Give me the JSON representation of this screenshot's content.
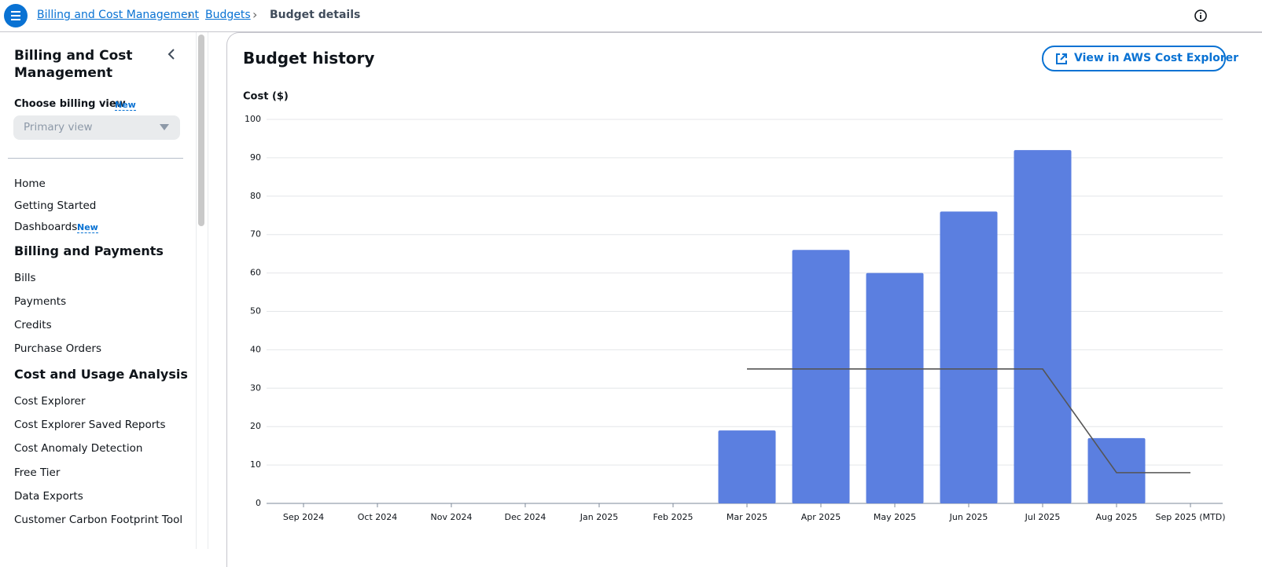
{
  "breadcrumbs": [
    "Billing and Cost Management",
    "Budgets",
    "Budget details"
  ],
  "sidebar": {
    "title": "Billing and Cost Management",
    "billing_view_label": "Choose billing view",
    "new_badge": "New",
    "billing_view_value": "Primary view",
    "top_links": [
      {
        "label": "Home"
      },
      {
        "label": "Getting Started"
      },
      {
        "label": "Dashboards",
        "badge": "New"
      }
    ],
    "sections": [
      {
        "title": "Billing and Payments",
        "items": [
          "Bills",
          "Payments",
          "Credits",
          "Purchase Orders"
        ]
      },
      {
        "title": "Cost and Usage Analysis",
        "items": [
          "Cost Explorer",
          "Cost Explorer Saved Reports",
          "Cost Anomaly Detection",
          "Free Tier",
          "Data Exports",
          "Customer Carbon Footprint Tool"
        ]
      }
    ]
  },
  "main": {
    "title": "Budget history",
    "button": "View in AWS Cost Explorer"
  },
  "chart_data": {
    "type": "bar",
    "y_label": "Cost ($)",
    "categories": [
      "Sep 2024",
      "Oct 2024",
      "Nov 2024",
      "Dec 2024",
      "Jan 2025",
      "Feb 2025",
      "Mar 2025",
      "Apr 2025",
      "May 2025",
      "Jun 2025",
      "Jul 2025",
      "Aug 2025",
      "Sep 2025 (MTD)"
    ],
    "series": [
      {
        "type": "bar",
        "color": "#5b7fe0",
        "values": [
          null,
          null,
          null,
          null,
          null,
          null,
          19,
          66,
          60,
          76,
          92,
          17,
          null
        ]
      },
      {
        "type": "line",
        "color": "#555555",
        "values": [
          null,
          null,
          null,
          null,
          null,
          null,
          35,
          35,
          35,
          35,
          35,
          8,
          8
        ]
      }
    ],
    "ylim": [
      0,
      100
    ],
    "yticks": [
      0,
      10,
      20,
      30,
      40,
      50,
      60,
      70,
      80,
      90,
      100
    ],
    "grid": true
  }
}
